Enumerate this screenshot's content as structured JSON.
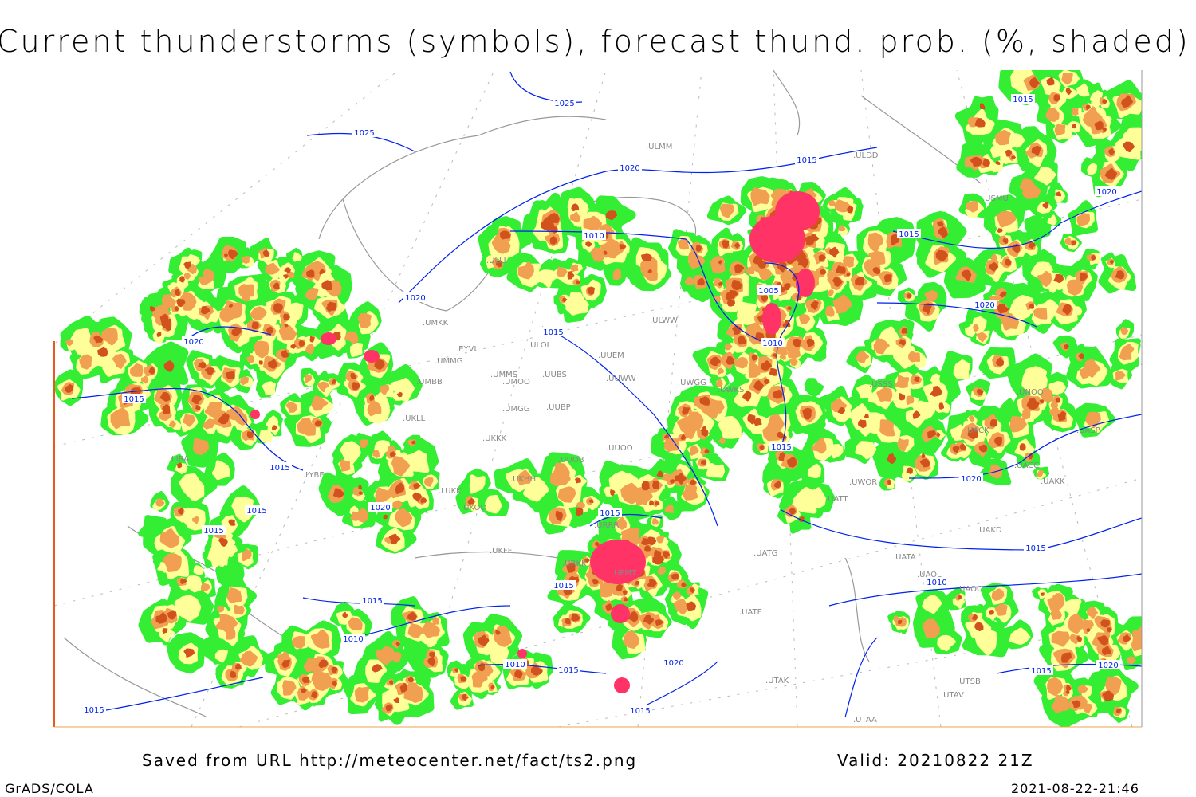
{
  "title": "Current thunderstorms (symbols), forecast thund. prob. (%, shaded)",
  "footer": {
    "source": "Saved from URL http://meteocenter.net/fact/ts2.png",
    "valid": "Valid: 20210822 21Z",
    "software": "GrADS/COLA",
    "timestamp": "2021-08-22-21:46"
  },
  "colors": {
    "prob_low": "#33ee33",
    "prob_mid": "#ffff99",
    "prob_high": "#f0a050",
    "prob_very_high": "#d2521e",
    "thunderstorm_symbols": "#ff3366",
    "isobars": "#0022ee",
    "coastlines": "#999999"
  },
  "stations": [
    "UMKK",
    "UMMG",
    "EYVI",
    "UMBB",
    "UMMS",
    "UMOO",
    "UUBS",
    "UUEM",
    "UUWW",
    "UMGG",
    "UUBP",
    "UKKK",
    "UUOB",
    "UUOO",
    "ULOL",
    "ULWW",
    "UWGG",
    "UWKS",
    "LYBE",
    "LIRA",
    "UKLL",
    "LUKK",
    "UKOO",
    "UKFF",
    "UKHH",
    "URRR",
    "URKK",
    "UPMT",
    "ULMM",
    "ULDD",
    "USMU",
    "UNNT",
    "UNBB",
    "USSS",
    "UNOO",
    "UACC",
    "UAKK",
    "UASP",
    "UATT",
    "UWOR",
    "UAKD",
    "UATG",
    "UATA",
    "UAOL",
    "UAOO",
    "UATE",
    "UTAK",
    "UTSB",
    "UTAA",
    "UTAV",
    "ULLI",
    "UACK"
  ],
  "isobar_labels": [
    "1025",
    "1025",
    "1020",
    "1020",
    "1020",
    "1020",
    "1020",
    "1020",
    "1020",
    "1020",
    "1020",
    "1015",
    "1015",
    "1015",
    "1015",
    "1015",
    "1015",
    "1015",
    "1015",
    "1015",
    "1015",
    "1015",
    "1015",
    "1015",
    "1015",
    "1015",
    "1015",
    "1015",
    "1010",
    "1010",
    "1010",
    "1010",
    "1010",
    "1005"
  ]
}
